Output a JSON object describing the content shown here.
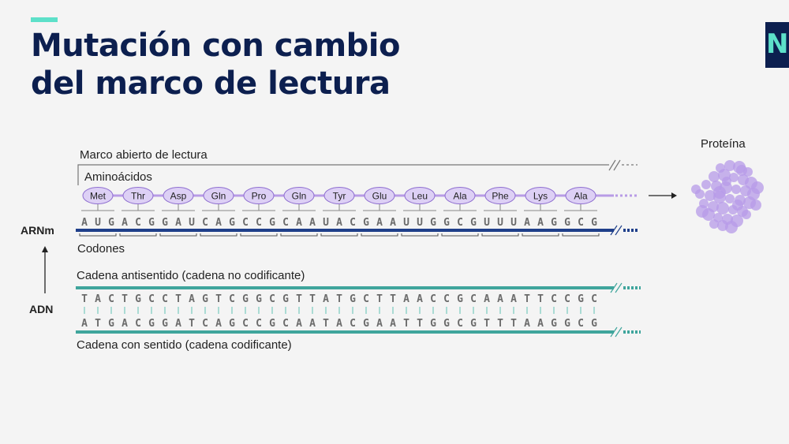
{
  "slide": {
    "title_line1": "Mutación con cambio",
    "title_line2": "del marco de lectura",
    "logo_text": "Ne"
  },
  "labels": {
    "orf": "Marco abierto de lectura",
    "amino_acids": "Aminoácidos",
    "protein": "Proteína",
    "mrna": "ARNm",
    "codons": "Codones",
    "dna": "ADN",
    "antisense": "Cadena antisentido (cadena no codificante)",
    "sense": "Cadena con sentido (cadena codificante)"
  },
  "amino_acids": [
    "Met",
    "Thr",
    "Asp",
    "Gln",
    "Pro",
    "Gln",
    "Tyr",
    "Glu",
    "Leu",
    "Ala",
    "Phe",
    "Lys",
    "Ala"
  ],
  "mrna_sequence": [
    "A",
    "U",
    "G",
    "A",
    "C",
    "G",
    "G",
    "A",
    "U",
    "C",
    "A",
    "G",
    "C",
    "C",
    "G",
    "C",
    "A",
    "A",
    "U",
    "A",
    "C",
    "G",
    "A",
    "A",
    "U",
    "U",
    "G",
    "G",
    "C",
    "G",
    "U",
    "U",
    "U",
    "A",
    "A",
    "G",
    "G",
    "C",
    "G"
  ],
  "antisense_sequence": [
    "T",
    "A",
    "C",
    "T",
    "G",
    "C",
    "C",
    "T",
    "A",
    "G",
    "T",
    "C",
    "G",
    "G",
    "C",
    "G",
    "T",
    "T",
    "A",
    "T",
    "G",
    "C",
    "T",
    "T",
    "A",
    "A",
    "C",
    "C",
    "G",
    "C",
    "A",
    "A",
    "A",
    "T",
    "T",
    "C",
    "C",
    "G",
    "C"
  ],
  "sense_sequence": [
    "A",
    "T",
    "G",
    "A",
    "C",
    "G",
    "G",
    "A",
    "T",
    "C",
    "A",
    "G",
    "C",
    "C",
    "G",
    "C",
    "A",
    "A",
    "T",
    "A",
    "C",
    "G",
    "A",
    "A",
    "T",
    "T",
    "G",
    "G",
    "C",
    "G",
    "T",
    "T",
    "T",
    "A",
    "A",
    "G",
    "G",
    "C",
    "G"
  ],
  "colors": {
    "title": "#0c1f4f",
    "accent": "#5de0c9",
    "amino_fill": "#ddd0f5",
    "amino_stroke": "#8f6fd0",
    "mrna_strand": "#1f3f8a",
    "dna_strand": "#3fa59c",
    "protein": "#b79be8"
  }
}
